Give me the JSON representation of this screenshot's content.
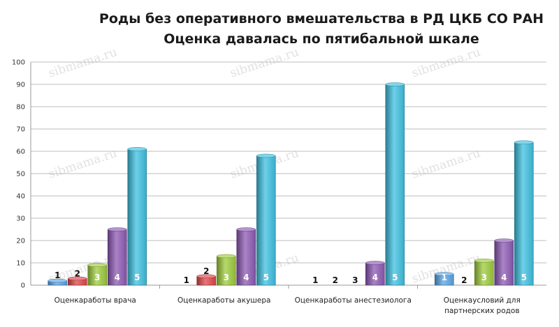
{
  "chart_data": {
    "type": "bar",
    "title": "Роды без оперативного вмешательства в РД ЦКБ СО РАН",
    "subtitle": "Оценка давалась по пятибальной шкале",
    "xlabel": "",
    "ylabel": "",
    "ylim": [
      0,
      100
    ],
    "yticks": [
      0,
      10,
      20,
      30,
      40,
      50,
      60,
      70,
      80,
      90,
      100
    ],
    "grid": true,
    "legend": "none",
    "watermark": "sibmama.ru",
    "categories": [
      [
        "Оценкаработы врача"
      ],
      [
        "Оценкаработы акушера"
      ],
      [
        "Оценкаработы анестезиолога"
      ],
      [
        "Оценкаусловий для",
        "партнерских родов"
      ]
    ],
    "series": [
      {
        "label": "1",
        "color": "#5aa6e6",
        "values": [
          2,
          0,
          0,
          5
        ]
      },
      {
        "label": "2",
        "color": "#e0474a",
        "values": [
          3,
          4,
          0,
          0
        ]
      },
      {
        "label": "3",
        "color": "#9ecc3c",
        "values": [
          9,
          13,
          0,
          11
        ]
      },
      {
        "label": "4",
        "color": "#8d5ab4",
        "values": [
          25,
          25,
          10,
          20
        ]
      },
      {
        "label": "5",
        "color": "#3ec0e0",
        "values": [
          61,
          58,
          90,
          64
        ]
      }
    ]
  }
}
